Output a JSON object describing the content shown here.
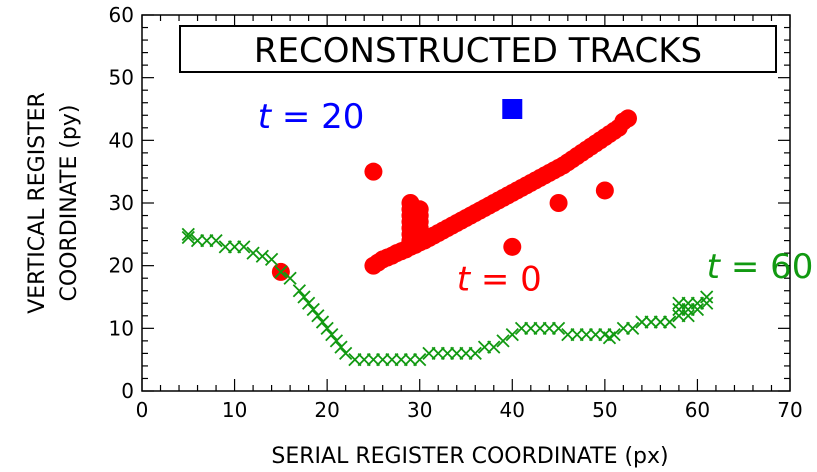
{
  "chart_data": {
    "type": "scatter",
    "title": "RECONSTRUCTED TRACKS",
    "xlabel": "SERIAL REGISTER COORDINATE (px)",
    "ylabel_line1": "VERTICAL REGISTER",
    "ylabel_line2": "COORDINATE (py)",
    "xlim": [
      0,
      70
    ],
    "ylim": [
      0,
      60
    ],
    "xticks": [
      "0",
      "10",
      "20",
      "30",
      "40",
      "50",
      "60",
      "70"
    ],
    "yticks": [
      "0",
      "10",
      "20",
      "30",
      "40",
      "50",
      "60"
    ],
    "grid": false,
    "legend": "none",
    "series": [
      {
        "label": "t = 0",
        "color": "#ff0000",
        "marker": "circle",
        "points": [
          [
            25,
            20
          ],
          [
            25.5,
            20.5
          ],
          [
            26,
            21
          ],
          [
            26.5,
            21.3
          ],
          [
            27,
            21.6
          ],
          [
            27.5,
            22
          ],
          [
            28,
            22.3
          ],
          [
            28.5,
            22.6
          ],
          [
            29,
            23
          ],
          [
            29.5,
            23.3
          ],
          [
            30,
            23.7
          ],
          [
            30.5,
            24
          ],
          [
            31,
            24.4
          ],
          [
            31.5,
            24.8
          ],
          [
            32,
            25.2
          ],
          [
            32.5,
            25.6
          ],
          [
            33,
            26
          ],
          [
            33.5,
            26.4
          ],
          [
            34,
            26.8
          ],
          [
            34.5,
            27.2
          ],
          [
            35,
            27.6
          ],
          [
            35.5,
            28
          ],
          [
            36,
            28.4
          ],
          [
            36.5,
            28.8
          ],
          [
            37,
            29.2
          ],
          [
            37.5,
            29.6
          ],
          [
            38,
            30
          ],
          [
            38.5,
            30.4
          ],
          [
            39,
            30.8
          ],
          [
            39.5,
            31.2
          ],
          [
            40,
            31.6
          ],
          [
            40.5,
            32
          ],
          [
            41,
            32.4
          ],
          [
            41.5,
            32.8
          ],
          [
            42,
            33.2
          ],
          [
            42.5,
            33.6
          ],
          [
            43,
            34
          ],
          [
            43.5,
            34.4
          ],
          [
            44,
            34.8
          ],
          [
            44.5,
            35.2
          ],
          [
            45,
            35.6
          ],
          [
            45.5,
            36
          ],
          [
            46,
            36.5
          ],
          [
            46.5,
            37
          ],
          [
            47,
            37.5
          ],
          [
            47.5,
            38
          ],
          [
            48,
            38.5
          ],
          [
            48.5,
            39
          ],
          [
            49,
            39.5
          ],
          [
            49.5,
            40
          ],
          [
            50,
            40.5
          ],
          [
            50.5,
            41
          ],
          [
            51,
            41.5
          ],
          [
            51.5,
            42
          ],
          [
            52,
            43
          ],
          [
            52.5,
            43.5
          ],
          [
            29,
            30
          ],
          [
            29,
            29
          ],
          [
            29,
            28
          ],
          [
            29,
            27
          ],
          [
            29,
            26
          ],
          [
            29,
            25
          ],
          [
            29,
            24
          ],
          [
            30,
            29
          ],
          [
            30,
            28
          ],
          [
            30,
            27
          ],
          [
            30,
            26
          ],
          [
            30,
            25
          ],
          [
            29.5,
            27.5
          ],
          [
            25,
            35
          ],
          [
            15,
            19
          ],
          [
            40,
            23
          ],
          [
            45,
            30
          ],
          [
            50,
            32
          ]
        ]
      },
      {
        "label": "t = 20",
        "color": "#0000ff",
        "marker": "square",
        "points": [
          [
            40,
            45
          ]
        ]
      },
      {
        "label": "t = 60",
        "color": "#119911",
        "marker": "x",
        "points": [
          [
            5,
            25
          ],
          [
            5,
            24.5
          ],
          [
            6,
            24
          ],
          [
            7,
            24
          ],
          [
            8,
            24
          ],
          [
            9,
            23
          ],
          [
            10,
            23
          ],
          [
            11,
            23
          ],
          [
            12,
            22
          ],
          [
            13,
            21.5
          ],
          [
            14,
            21
          ],
          [
            15,
            19
          ],
          [
            16,
            18
          ],
          [
            17,
            16
          ],
          [
            17.5,
            15
          ],
          [
            18,
            14
          ],
          [
            18.5,
            13
          ],
          [
            19,
            12
          ],
          [
            19.5,
            11
          ],
          [
            20,
            10
          ],
          [
            20.5,
            9
          ],
          [
            21,
            8
          ],
          [
            21.5,
            7
          ],
          [
            22,
            6
          ],
          [
            23,
            5
          ],
          [
            24,
            5
          ],
          [
            25,
            5
          ],
          [
            26,
            5
          ],
          [
            27,
            5
          ],
          [
            28,
            5
          ],
          [
            29,
            5
          ],
          [
            30,
            5
          ],
          [
            31,
            6
          ],
          [
            32,
            6
          ],
          [
            33,
            6
          ],
          [
            34,
            6
          ],
          [
            35,
            6
          ],
          [
            36,
            6
          ],
          [
            37,
            7
          ],
          [
            38,
            7
          ],
          [
            39,
            8
          ],
          [
            40,
            9
          ],
          [
            41,
            10
          ],
          [
            42,
            10
          ],
          [
            43,
            10
          ],
          [
            44,
            10
          ],
          [
            45,
            10
          ],
          [
            46,
            9
          ],
          [
            47,
            9
          ],
          [
            48,
            9
          ],
          [
            49,
            9
          ],
          [
            50,
            9
          ],
          [
            50.5,
            8.5
          ],
          [
            51,
            9
          ],
          [
            52,
            10
          ],
          [
            53,
            10
          ],
          [
            54,
            11
          ],
          [
            55,
            11
          ],
          [
            56,
            11
          ],
          [
            57,
            11
          ],
          [
            58,
            12
          ],
          [
            58,
            13
          ],
          [
            58,
            14
          ],
          [
            59,
            13
          ],
          [
            59,
            14
          ],
          [
            60,
            13
          ],
          [
            60,
            14
          ],
          [
            61,
            14
          ],
          [
            61,
            15
          ],
          [
            59,
            12
          ]
        ]
      }
    ],
    "annotations": [
      {
        "text": "t = 20",
        "color": "#0000ff",
        "x": 12.5,
        "y": 42
      },
      {
        "text": "t = 0",
        "color": "#ff0000",
        "x": 34,
        "y": 16
      },
      {
        "text": "t = 60",
        "color": "#119911",
        "x": 61,
        "y": 18
      }
    ]
  }
}
